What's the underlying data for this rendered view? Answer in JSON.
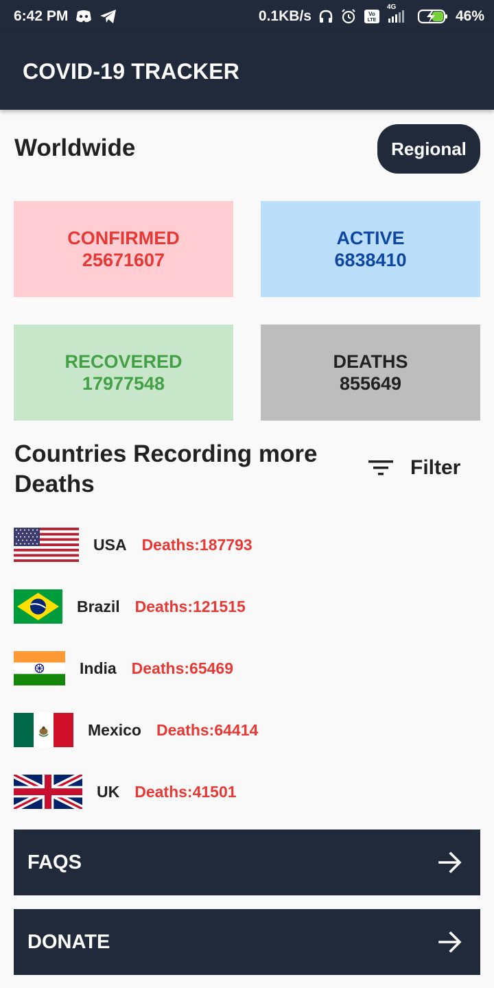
{
  "status_bar": {
    "time": "6:42 PM",
    "network_speed": "0.1KB/s",
    "network_type": "4G",
    "battery": "46%",
    "icons_left": [
      "discord-icon",
      "telegram-icon"
    ],
    "icons_right": [
      "headphones-icon",
      "alarm-icon",
      "volte-icon",
      "signal-icon",
      "battery-charging-icon"
    ]
  },
  "app_bar": {
    "title": "COVID-19 TRACKER"
  },
  "worldwide": {
    "title": "Worldwide",
    "regional_button": "Regional",
    "cards": {
      "confirmed": {
        "label": "CONFIRMED",
        "value": "25671607",
        "bg": "#ffcdd2",
        "color": "#e53935"
      },
      "active": {
        "label": "ACTIVE",
        "value": "6838410",
        "bg": "#bbdefb",
        "color": "#0d47a1"
      },
      "recovered": {
        "label": "RECOVERED",
        "value": "17977548",
        "bg": "#c8e6c9",
        "color": "#43a047"
      },
      "deaths": {
        "label": "DEATHS",
        "value": "855649",
        "bg": "#bdbdbd",
        "color": "#212121"
      }
    }
  },
  "countries": {
    "title": "Countries Recording more Deaths",
    "filter_label": "Filter",
    "items": [
      {
        "name": "USA",
        "deaths": "Deaths:187793",
        "flag": "usa-flag"
      },
      {
        "name": "Brazil",
        "deaths": "Deaths:121515",
        "flag": "brazil-flag"
      },
      {
        "name": "India",
        "deaths": "Deaths:65469",
        "flag": "india-flag"
      },
      {
        "name": "Mexico",
        "deaths": "Deaths:64414",
        "flag": "mexico-flag"
      },
      {
        "name": "UK",
        "deaths": "Deaths:41501",
        "flag": "uk-flag"
      }
    ]
  },
  "buttons": {
    "faqs": "FAQS",
    "donate": "DONATE"
  },
  "colors": {
    "primary_dark": "#202a3a",
    "deaths_red": "#e53935",
    "background": "#f9f9f9"
  }
}
